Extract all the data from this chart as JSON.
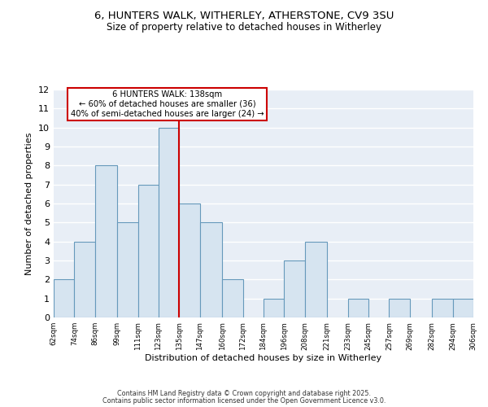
{
  "title1": "6, HUNTERS WALK, WITHERLEY, ATHERSTONE, CV9 3SU",
  "title2": "Size of property relative to detached houses in Witherley",
  "xlabel": "Distribution of detached houses by size in Witherley",
  "ylabel": "Number of detached properties",
  "bin_edges": [
    62,
    74,
    86,
    99,
    111,
    123,
    135,
    147,
    160,
    172,
    184,
    196,
    208,
    221,
    233,
    245,
    257,
    269,
    282,
    294,
    306
  ],
  "bin_counts": [
    2,
    4,
    8,
    5,
    7,
    10,
    6,
    5,
    2,
    0,
    1,
    3,
    4,
    0,
    1,
    0,
    1,
    0,
    1,
    1
  ],
  "bar_color": "#d6e4f0",
  "bar_edge_color": "#6699bb",
  "ref_line_x": 135,
  "ref_line_color": "#cc0000",
  "annotation_title": "6 HUNTERS WALK: 138sqm",
  "annotation_line1": "← 60% of detached houses are smaller (36)",
  "annotation_line2": "40% of semi-detached houses are larger (24) →",
  "annotation_box_color": "#ffffff",
  "annotation_box_edge": "#cc0000",
  "ylim": [
    0,
    12
  ],
  "yticks": [
    0,
    1,
    2,
    3,
    4,
    5,
    6,
    7,
    8,
    9,
    10,
    11,
    12
  ],
  "tick_labels": [
    "62sqm",
    "74sqm",
    "86sqm",
    "99sqm",
    "111sqm",
    "123sqm",
    "135sqm",
    "147sqm",
    "160sqm",
    "172sqm",
    "184sqm",
    "196sqm",
    "208sqm",
    "221sqm",
    "233sqm",
    "245sqm",
    "257sqm",
    "269sqm",
    "282sqm",
    "294sqm",
    "306sqm"
  ],
  "footer1": "Contains HM Land Registry data © Crown copyright and database right 2025.",
  "footer2": "Contains public sector information licensed under the Open Government Licence v3.0.",
  "fig_bg_color": "#ffffff",
  "plot_bg_color": "#e8eef6",
  "grid_color": "#ffffff"
}
